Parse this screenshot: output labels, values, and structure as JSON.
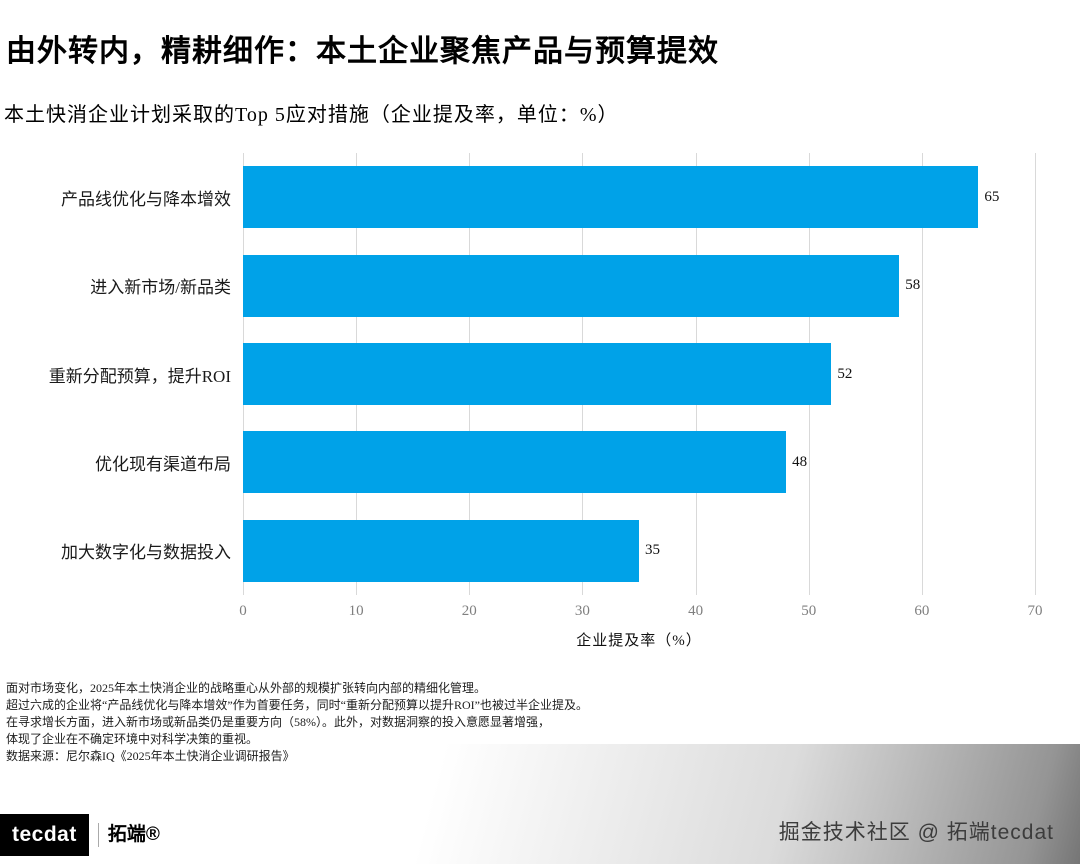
{
  "header": {
    "title": "由外转内，精耕细作：本土企业聚焦产品与预算提效",
    "subtitle": "本土快消企业计划采取的Top 5应对措施（企业提及率，单位：%）"
  },
  "chart_data": {
    "type": "bar",
    "orientation": "horizontal",
    "title": "本土快消企业计划采取的Top 5应对措施（企业提及率，单位：%）",
    "categories": [
      "产品线优化与降本增效",
      "进入新市场/新品类",
      "重新分配预算，提升ROI",
      "优化现有渠道布局",
      "加大数字化与数据投入"
    ],
    "values": [
      65,
      58,
      52,
      48,
      35
    ],
    "xlabel": "企业提及率（%）",
    "ylabel": "",
    "xlim": [
      0,
      70
    ],
    "xticks": [
      0,
      10,
      20,
      30,
      40,
      50,
      60,
      70
    ],
    "bar_color": "#00A2E8",
    "grid": true,
    "legend": "none"
  },
  "footer": {
    "lines": [
      "面对市场变化，2025年本土快消企业的战略重心从外部的规模扩张转向内部的精细化管理。",
      "超过六成的企业将“产品线优化与降本增效”作为首要任务，同时“重新分配预算以提升ROI”也被过半企业提及。",
      "在寻求增长方面，进入新市场或新品类仍是重要方向（58%）。此外，对数据洞察的投入意愿显著增强，",
      "体现了企业在不确定环境中对科学决策的重视。"
    ],
    "source": "数据来源：尼尔森IQ《2025年本土快消企业调研报告》"
  },
  "branding": {
    "logo_text": "tecdat",
    "logo_suffix": "拓端®",
    "watermark": "掘金技术社区 @ 拓端tecdat"
  }
}
